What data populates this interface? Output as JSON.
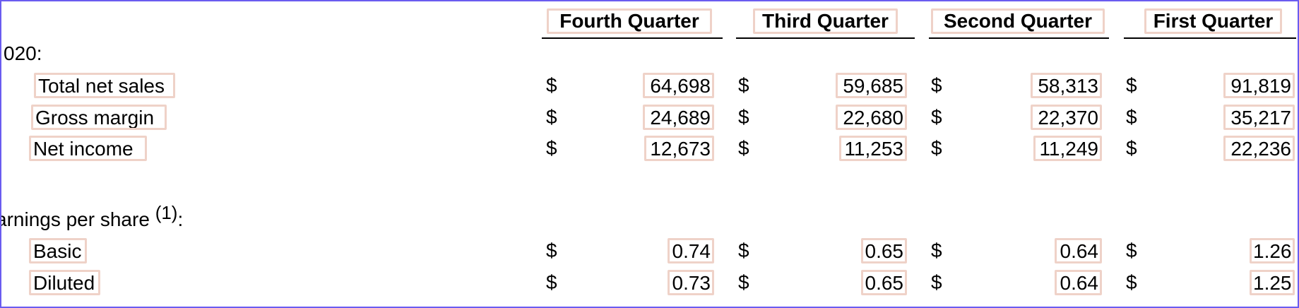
{
  "headers": {
    "q4": "Fourth Quarter",
    "q3": "Third Quarter",
    "q2": "Second Quarter",
    "q1": "First Quarter"
  },
  "sections": {
    "year": "020:",
    "eps": "arnings per share",
    "eps_footnote": "(1)",
    "eps_colon": ":"
  },
  "currency_symbol": "$",
  "rows": [
    {
      "label": "Total net sales",
      "q4": "64,698",
      "q3": "59,685",
      "q2": "58,313",
      "q1": "91,819"
    },
    {
      "label": "Gross margin",
      "q4": "24,689",
      "q3": "22,680",
      "q2": "22,370",
      "q1": "35,217"
    },
    {
      "label": "Net income",
      "q4": "12,673",
      "q3": "11,253",
      "q2": "11,249",
      "q1": "22,236"
    },
    {
      "label": "Basic",
      "q4": "0.74",
      "q3": "0.65",
      "q2": "0.64",
      "q1": "1.26"
    },
    {
      "label": "Diluted",
      "q4": "0.73",
      "q3": "0.65",
      "q2": "0.64",
      "q1": "1.25"
    }
  ],
  "colors": {
    "frame_border": "#6a5cf0",
    "highlight": "#efd2c8",
    "text": "#000000"
  }
}
